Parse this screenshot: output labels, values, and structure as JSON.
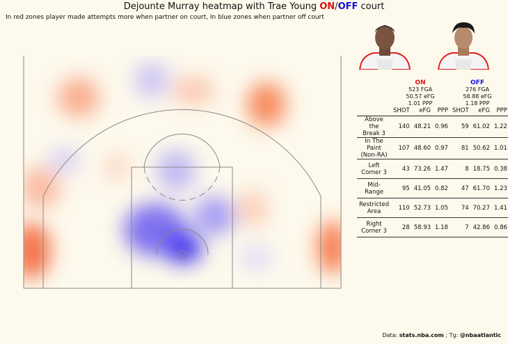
{
  "title": {
    "prefix": "Dejounte Murray heatmap with Trae Young ",
    "on": "ON",
    "slash": "/",
    "off": "OFF",
    "suffix": " court"
  },
  "subtitle": "In red zones player made attempts more when partner on court, In blue zones when partner off court",
  "colors": {
    "on": "#dd1111",
    "off": "#1111dd",
    "background": "#fdf9ec"
  },
  "on_summary": {
    "label": "ON",
    "fga": "523 FGA",
    "efg": "50.57 eFG",
    "ppp": "1.01 PPP"
  },
  "off_summary": {
    "label": "OFF",
    "fga": "276 FGA",
    "efg": "58.88 eFG",
    "ppp": "1.18 PPP"
  },
  "chart_data": {
    "type": "table",
    "columns": [
      "SHOT",
      "eFG",
      "PPP",
      "SHOT",
      "eFG",
      "PPP"
    ],
    "rows": [
      {
        "zone": [
          "Above the",
          "Break 3"
        ],
        "on": [
          "140",
          "48.21",
          "0.96"
        ],
        "off": [
          "59",
          "61.02",
          "1.22"
        ]
      },
      {
        "zone": [
          "In The Paint",
          "(Non-RA)"
        ],
        "on": [
          "107",
          "48.60",
          "0.97"
        ],
        "off": [
          "81",
          "50.62",
          "1.01"
        ]
      },
      {
        "zone": [
          "Left",
          "Corner 3"
        ],
        "on": [
          "43",
          "73.26",
          "1.47"
        ],
        "off": [
          "8",
          "18.75",
          "0.38"
        ]
      },
      {
        "zone": [
          "Mid-Range",
          ""
        ],
        "on": [
          "95",
          "41.05",
          "0.82"
        ],
        "off": [
          "47",
          "61.70",
          "1.23"
        ]
      },
      {
        "zone": [
          "Restricted",
          "Area"
        ],
        "on": [
          "110",
          "52.73",
          "1.05"
        ],
        "off": [
          "74",
          "70.27",
          "1.41"
        ]
      },
      {
        "zone": [
          "Right",
          "Corner 3"
        ],
        "on": [
          "28",
          "58.93",
          "1.18"
        ],
        "off": [
          "7",
          "42.86",
          "0.86"
        ]
      }
    ]
  },
  "credit": {
    "prefix": "Data: ",
    "source": "stats.nba.com",
    "mid": " ; Tg: ",
    "handle": "@nbaatlantic"
  }
}
